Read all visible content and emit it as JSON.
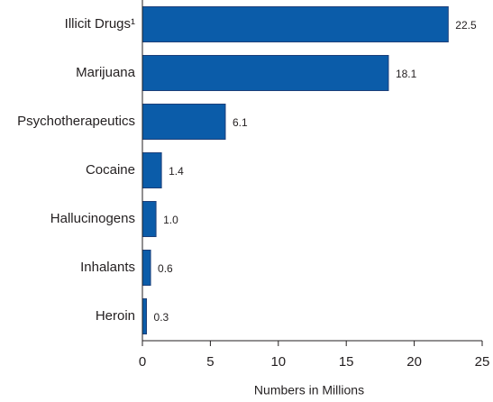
{
  "chart_data": {
    "type": "bar",
    "orientation": "horizontal",
    "categories": [
      "Illicit Drugs¹",
      "Marijuana",
      "Psychotherapeutics",
      "Cocaine",
      "Hallucinogens",
      "Inhalants",
      "Heroin"
    ],
    "values": [
      22.5,
      18.1,
      6.1,
      1.4,
      1.0,
      0.6,
      0.3
    ],
    "value_labels": [
      "22.5",
      "18.1",
      "6.1",
      "1.4",
      "1.0",
      "0.6",
      "0.3"
    ],
    "color": "#0b5ca9",
    "xlim": [
      0,
      25
    ],
    "xticks": [
      0,
      5,
      10,
      15,
      20,
      25
    ],
    "xlabel": "Numbers in Millions",
    "grid": false
  }
}
